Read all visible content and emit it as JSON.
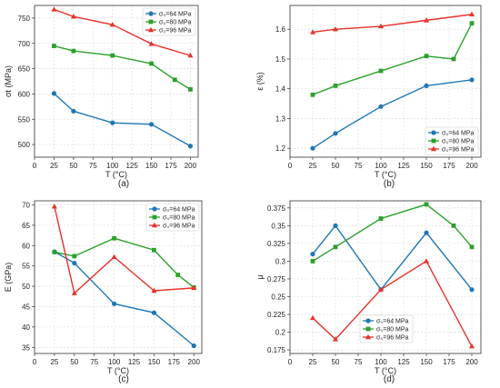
{
  "colors": {
    "s64": "#1f77b4",
    "s80": "#2ca02c",
    "s96": "#e8312a"
  },
  "chart_data": [
    {
      "type": "line",
      "panel_label": "(a)",
      "ylabel": "σt (MPa)",
      "xlabel": "T (°C)",
      "xlim": [
        0,
        210
      ],
      "ylim": [
        475,
        775
      ],
      "xticks": [
        0,
        25,
        50,
        75,
        100,
        125,
        150,
        175,
        200
      ],
      "yticks": [
        500,
        550,
        600,
        650,
        700,
        750
      ],
      "grid": true,
      "legend": "top-right",
      "series": [
        {
          "name": "σ₀=64 MPa",
          "color": "#1f77b4",
          "marker": "circle",
          "x": [
            25,
            50,
            100,
            150,
            200
          ],
          "y": [
            601,
            566,
            543,
            540,
            497
          ]
        },
        {
          "name": "σ₀=80 MPa",
          "color": "#2ca02c",
          "marker": "square",
          "x": [
            25,
            50,
            100,
            150,
            180,
            200
          ],
          "y": [
            695,
            685,
            676,
            660,
            628,
            609
          ]
        },
        {
          "name": "σ₀=96 MPa",
          "color": "#e8312a",
          "marker": "triangle",
          "x": [
            25,
            50,
            100,
            150,
            200
          ],
          "y": [
            767,
            753,
            737,
            699,
            676
          ]
        }
      ]
    },
    {
      "type": "line",
      "panel_label": "(b)",
      "ylabel": "ε (%)",
      "xlabel": "T (°C)",
      "xlim": [
        0,
        210
      ],
      "ylim": [
        1.17,
        1.68
      ],
      "xticks": [
        0,
        25,
        50,
        75,
        100,
        125,
        150,
        175,
        200
      ],
      "yticks": [
        1.2,
        1.3,
        1.4,
        1.5,
        1.6
      ],
      "grid": true,
      "legend": "bottom-right",
      "series": [
        {
          "name": "σ₀=64 MPa",
          "color": "#1f77b4",
          "marker": "circle",
          "x": [
            25,
            50,
            100,
            150,
            200
          ],
          "y": [
            1.2,
            1.25,
            1.34,
            1.41,
            1.43
          ]
        },
        {
          "name": "σ₀=80 MPa",
          "color": "#2ca02c",
          "marker": "square",
          "x": [
            25,
            50,
            100,
            150,
            180,
            200
          ],
          "y": [
            1.38,
            1.41,
            1.46,
            1.51,
            1.5,
            1.62
          ]
        },
        {
          "name": "σ₀=96 MPa",
          "color": "#e8312a",
          "marker": "triangle",
          "x": [
            25,
            50,
            100,
            150,
            200
          ],
          "y": [
            1.59,
            1.6,
            1.61,
            1.63,
            1.65
          ]
        }
      ]
    },
    {
      "type": "line",
      "panel_label": "(c)",
      "ylabel": "E (GPa)",
      "xlabel": "T (°C)",
      "xlim": [
        0,
        210
      ],
      "ylim": [
        33.5,
        71
      ],
      "xticks": [
        0,
        25,
        50,
        75,
        100,
        125,
        150,
        175,
        200
      ],
      "yticks": [
        35,
        40,
        45,
        50,
        55,
        60,
        65,
        70
      ],
      "grid": true,
      "legend": "top-right",
      "series": [
        {
          "name": "σ₀=64 MPa",
          "color": "#1f77b4",
          "marker": "circle",
          "x": [
            25,
            50,
            100,
            150,
            200
          ],
          "y": [
            58.5,
            55.7,
            45.7,
            43.5,
            35.4
          ]
        },
        {
          "name": "σ₀=80 MPa",
          "color": "#2ca02c",
          "marker": "square",
          "x": [
            25,
            50,
            100,
            150,
            180,
            200
          ],
          "y": [
            58.4,
            57.4,
            61.8,
            58.9,
            52.8,
            49.7
          ]
        },
        {
          "name": "σ₀=96 MPa",
          "color": "#e8312a",
          "marker": "triangle",
          "x": [
            25,
            50,
            100,
            150,
            200
          ],
          "y": [
            69.6,
            48.3,
            57.2,
            48.9,
            49.6
          ]
        }
      ]
    },
    {
      "type": "line",
      "panel_label": "(d)",
      "ylabel": "μ",
      "xlabel": "T (°C)",
      "xlim": [
        0,
        210
      ],
      "ylim": [
        0.17,
        0.385
      ],
      "xticks": [
        0,
        25,
        50,
        75,
        100,
        125,
        150,
        175,
        200
      ],
      "yticks": [
        0.175,
        0.2,
        0.225,
        0.25,
        0.275,
        0.3,
        0.325,
        0.35,
        0.375
      ],
      "grid": true,
      "legend": "bottom-center",
      "series": [
        {
          "name": "σ₀=64 MPa",
          "color": "#1f77b4",
          "marker": "circle",
          "x": [
            25,
            50,
            100,
            150,
            200
          ],
          "y": [
            0.31,
            0.35,
            0.26,
            0.34,
            0.26
          ]
        },
        {
          "name": "σ₀=80 MPa",
          "color": "#2ca02c",
          "marker": "square",
          "x": [
            25,
            50,
            100,
            150,
            180,
            200
          ],
          "y": [
            0.3,
            0.32,
            0.36,
            0.38,
            0.35,
            0.32
          ]
        },
        {
          "name": "σ₀=96 MPa",
          "color": "#e8312a",
          "marker": "triangle",
          "x": [
            25,
            50,
            100,
            150,
            200
          ],
          "y": [
            0.22,
            0.19,
            0.26,
            0.3,
            0.18
          ]
        }
      ]
    }
  ]
}
